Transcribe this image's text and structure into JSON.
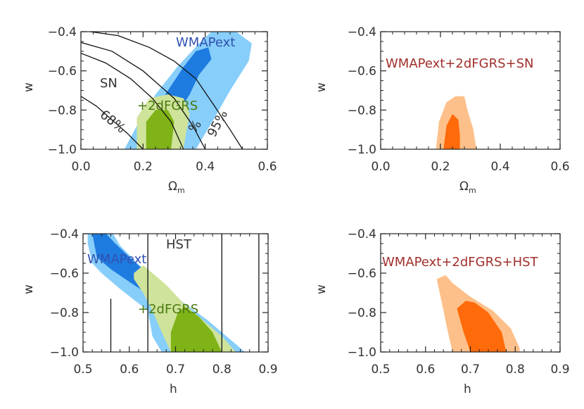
{
  "figure": {
    "panels": [
      {
        "id": "top-left",
        "xlabel": "Ω",
        "xlabel_sub": "m",
        "ylabel": "w",
        "annotations": [
          "WMAPext",
          "SN",
          "+2dFGRS",
          "68%",
          "95%",
          "%"
        ]
      },
      {
        "id": "top-right",
        "xlabel": "Ω",
        "xlabel_sub": "m",
        "ylabel": "w",
        "annotations": [
          "WMAPext+2dFGRS+SN"
        ]
      },
      {
        "id": "bottom-left",
        "xlabel": "h",
        "xlabel_sub": "",
        "ylabel": "w",
        "annotations": [
          "HST",
          "WMAPext",
          "+2dFGRS"
        ]
      },
      {
        "id": "bottom-right",
        "xlabel": "h",
        "xlabel_sub": "",
        "ylabel": "w",
        "annotations": [
          "WMAPext+2dFGRS+HST"
        ]
      }
    ]
  },
  "colors": {
    "wmap_outer": "#87cefa",
    "wmap_inner": "#1e7be0",
    "lss_outer": "#cfe39a",
    "lss_inner": "#7fb317",
    "comb_outer": "#fdc08a",
    "comb_inner": "#ff6a0a",
    "label_blue": "#3050b0",
    "label_red": "#a0302c",
    "label_green": "#4a7a10"
  },
  "chart_data": [
    {
      "type": "area",
      "xlim": [
        0.0,
        0.6
      ],
      "ylim": [
        -1.0,
        -0.4
      ],
      "xticks": [
        "0.0",
        "0.2",
        "0.4",
        "0.6"
      ],
      "yticks": [
        "-1.0",
        "-0.8",
        "-0.6",
        "-0.4"
      ],
      "regions": [
        {
          "name": "WMAPext",
          "level": "95%",
          "points": [
            [
              0.14,
              -1.0
            ],
            [
              0.18,
              -0.88
            ],
            [
              0.24,
              -0.72
            ],
            [
              0.31,
              -0.58
            ],
            [
              0.38,
              -0.46
            ],
            [
              0.42,
              -0.4
            ],
            [
              0.5,
              -0.4
            ],
            [
              0.55,
              -0.46
            ],
            [
              0.54,
              -0.55
            ],
            [
              0.48,
              -0.7
            ],
            [
              0.43,
              -0.84
            ],
            [
              0.37,
              -1.0
            ]
          ]
        },
        {
          "name": "WMAPext",
          "level": "68%",
          "points": [
            [
              0.23,
              -0.82
            ],
            [
              0.28,
              -0.7
            ],
            [
              0.33,
              -0.58
            ],
            [
              0.37,
              -0.5
            ],
            [
              0.41,
              -0.48
            ],
            [
              0.42,
              -0.54
            ],
            [
              0.38,
              -0.62
            ],
            [
              0.35,
              -0.72
            ],
            [
              0.31,
              -0.82
            ]
          ]
        },
        {
          "name": "+2dFGRS",
          "level": "95%",
          "points": [
            [
              0.18,
              -1.0
            ],
            [
              0.18,
              -0.84
            ],
            [
              0.22,
              -0.74
            ],
            [
              0.28,
              -0.72
            ],
            [
              0.33,
              -0.74
            ],
            [
              0.35,
              -0.82
            ],
            [
              0.34,
              -0.9
            ],
            [
              0.33,
              -1.0
            ]
          ]
        },
        {
          "name": "+2dFGRS",
          "level": "68%",
          "points": [
            [
              0.21,
              -1.0
            ],
            [
              0.21,
              -0.86
            ],
            [
              0.24,
              -0.8
            ],
            [
              0.28,
              -0.8
            ],
            [
              0.3,
              -0.86
            ],
            [
              0.29,
              -1.0
            ]
          ]
        }
      ],
      "lines": [
        {
          "name": "SN 68% (inner)",
          "points": [
            [
              0.0,
              -0.73
            ],
            [
              0.05,
              -0.78
            ],
            [
              0.1,
              -0.85
            ],
            [
              0.15,
              -0.92
            ],
            [
              0.2,
              -1.0
            ]
          ]
        },
        {
          "name": "SN 68% (outer)",
          "points": [
            [
              0.0,
              -0.51
            ],
            [
              0.08,
              -0.56
            ],
            [
              0.16,
              -0.64
            ],
            [
              0.23,
              -0.74
            ],
            [
              0.29,
              -0.86
            ],
            [
              0.33,
              -1.0
            ]
          ]
        },
        {
          "name": "SN 95% (inner)",
          "points": [
            [
              0.0,
              -0.455
            ],
            [
              0.1,
              -0.5
            ],
            [
              0.2,
              -0.6
            ],
            [
              0.3,
              -0.74
            ],
            [
              0.36,
              -0.88
            ],
            [
              0.4,
              -1.0
            ]
          ]
        },
        {
          "name": "SN 95% (outer)",
          "points": [
            [
              0.03,
              -0.4
            ],
            [
              0.12,
              -0.42
            ],
            [
              0.22,
              -0.48
            ],
            [
              0.3,
              -0.55
            ],
            [
              0.37,
              -0.64
            ],
            [
              0.43,
              -0.78
            ],
            [
              0.48,
              -0.9
            ],
            [
              0.52,
              -1.0
            ]
          ]
        }
      ]
    },
    {
      "type": "area",
      "xlim": [
        0.0,
        0.6
      ],
      "ylim": [
        -1.0,
        -0.4
      ],
      "xticks": [
        "0.0",
        "0.2",
        "0.4",
        "0.6"
      ],
      "yticks": [
        "-1.0",
        "-0.8",
        "-0.6",
        "-0.4"
      ],
      "regions": [
        {
          "name": "WMAPext+2dFGRS+SN",
          "level": "95%",
          "points": [
            [
              0.185,
              -1.0
            ],
            [
              0.195,
              -0.86
            ],
            [
              0.22,
              -0.76
            ],
            [
              0.25,
              -0.73
            ],
            [
              0.28,
              -0.73
            ],
            [
              0.29,
              -0.8
            ],
            [
              0.31,
              -0.9
            ],
            [
              0.32,
              -1.0
            ]
          ]
        },
        {
          "name": "WMAPext+2dFGRS+SN",
          "level": "68%",
          "points": [
            [
              0.21,
              -1.0
            ],
            [
              0.22,
              -0.88
            ],
            [
              0.24,
              -0.82
            ],
            [
              0.26,
              -0.85
            ],
            [
              0.265,
              -0.93
            ],
            [
              0.265,
              -1.0
            ]
          ]
        }
      ],
      "lines": []
    },
    {
      "type": "area",
      "xlim": [
        0.5,
        0.9
      ],
      "ylim": [
        -1.0,
        -0.4
      ],
      "xticks": [
        "0.5",
        "0.6",
        "0.7",
        "0.8",
        "0.9"
      ],
      "yticks": [
        "-1.0",
        "-0.8",
        "-0.6",
        "-0.4"
      ],
      "regions": [
        {
          "name": "WMAPext",
          "level": "95%",
          "points": [
            [
              0.51,
              -0.4
            ],
            [
              0.51,
              -0.45
            ],
            [
              0.52,
              -0.55
            ],
            [
              0.54,
              -0.6
            ],
            [
              0.58,
              -0.68
            ],
            [
              0.64,
              -0.79
            ],
            [
              0.65,
              -0.92
            ],
            [
              0.67,
              -1.0
            ],
            [
              0.85,
              -1.0
            ],
            [
              0.83,
              -0.96
            ],
            [
              0.77,
              -0.84
            ],
            [
              0.7,
              -0.72
            ],
            [
              0.63,
              -0.58
            ],
            [
              0.58,
              -0.46
            ],
            [
              0.565,
              -0.4
            ]
          ]
        },
        {
          "name": "WMAPext",
          "level": "68%",
          "points": [
            [
              0.52,
              -0.4
            ],
            [
              0.53,
              -0.52
            ],
            [
              0.56,
              -0.58
            ],
            [
              0.61,
              -0.66
            ],
            [
              0.65,
              -0.72
            ],
            [
              0.69,
              -0.78
            ],
            [
              0.7,
              -0.72
            ],
            [
              0.66,
              -0.64
            ],
            [
              0.61,
              -0.54
            ],
            [
              0.57,
              -0.45
            ],
            [
              0.55,
              -0.4
            ]
          ]
        },
        {
          "name": "+2dFGRS",
          "level": "95%",
          "points": [
            [
              0.61,
              -0.63
            ],
            [
              0.63,
              -0.7
            ],
            [
              0.65,
              -0.79
            ],
            [
              0.67,
              -0.9
            ],
            [
              0.69,
              -1.0
            ],
            [
              0.83,
              -1.0
            ],
            [
              0.8,
              -0.92
            ],
            [
              0.76,
              -0.84
            ],
            [
              0.72,
              -0.76
            ],
            [
              0.68,
              -0.66
            ],
            [
              0.63,
              -0.56
            ],
            [
              0.61,
              -0.6
            ]
          ]
        },
        {
          "name": "+2dFGRS",
          "level": "68%",
          "points": [
            [
              0.69,
              -1.0
            ],
            [
              0.69,
              -0.9
            ],
            [
              0.705,
              -0.8
            ],
            [
              0.72,
              -0.77
            ],
            [
              0.75,
              -0.82
            ],
            [
              0.78,
              -0.9
            ],
            [
              0.8,
              -1.0
            ]
          ]
        }
      ],
      "lines": [
        {
          "name": "HST 68% low",
          "points": [
            [
              0.64,
              -0.4
            ],
            [
              0.64,
              -1.0
            ]
          ]
        },
        {
          "name": "HST 68% high",
          "points": [
            [
              0.8,
              -0.4
            ],
            [
              0.8,
              -1.0
            ]
          ]
        },
        {
          "name": "HST 95% low",
          "points": [
            [
              0.56,
              -0.73
            ],
            [
              0.56,
              -1.0
            ]
          ]
        },
        {
          "name": "HST 95% high",
          "points": [
            [
              0.88,
              -0.4
            ],
            [
              0.88,
              -1.0
            ]
          ]
        }
      ]
    },
    {
      "type": "area",
      "xlim": [
        0.5,
        0.9
      ],
      "ylim": [
        -1.0,
        -0.4
      ],
      "xticks": [
        "0.5",
        "0.6",
        "0.7",
        "0.8",
        "0.9"
      ],
      "yticks": [
        "-1.0",
        "-0.8",
        "-0.6",
        "-0.4"
      ],
      "regions": [
        {
          "name": "WMAPext+2dFGRS+HST",
          "level": "95%",
          "points": [
            [
              0.625,
              -0.63
            ],
            [
              0.645,
              -0.61
            ],
            [
              0.66,
              -0.65
            ],
            [
              0.7,
              -0.72
            ],
            [
              0.75,
              -0.79
            ],
            [
              0.79,
              -0.88
            ],
            [
              0.81,
              -0.98
            ],
            [
              0.81,
              -1.0
            ],
            [
              0.66,
              -1.0
            ],
            [
              0.65,
              -0.9
            ],
            [
              0.64,
              -0.79
            ]
          ]
        },
        {
          "name": "WMAPext+2dFGRS+HST",
          "level": "68%",
          "points": [
            [
              0.67,
              -0.78
            ],
            [
              0.69,
              -0.74
            ],
            [
              0.71,
              -0.75
            ],
            [
              0.74,
              -0.8
            ],
            [
              0.77,
              -0.9
            ],
            [
              0.78,
              -1.0
            ],
            [
              0.7,
              -1.0
            ],
            [
              0.685,
              -0.9
            ]
          ]
        }
      ],
      "lines": []
    }
  ]
}
